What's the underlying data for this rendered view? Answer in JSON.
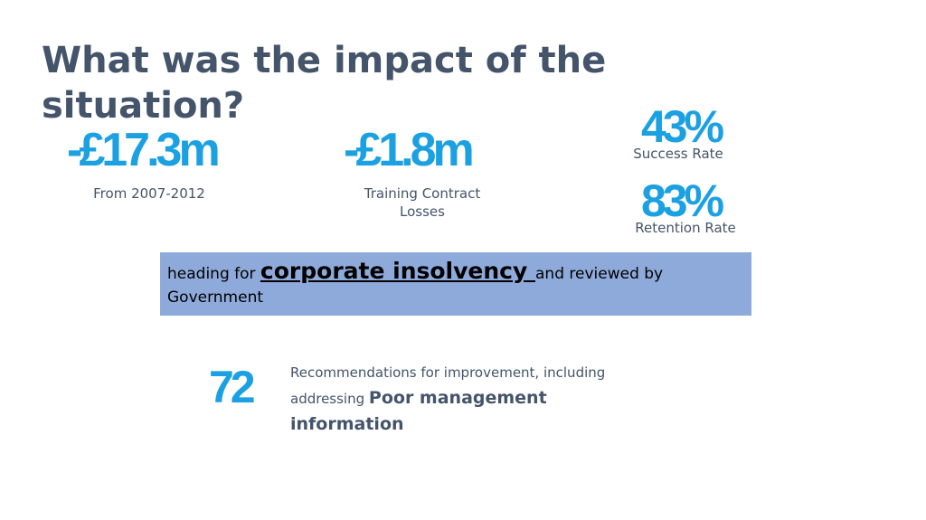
{
  "title": "What was the impact of the situation?",
  "stats": {
    "loss_total": {
      "value": "-£17.3m",
      "caption": "From 2007-2012"
    },
    "loss_training": {
      "value": "-£1.8m",
      "caption": "Training Contract Losses"
    },
    "success": {
      "value": "43%",
      "caption": "Success Rate"
    },
    "retention": {
      "value": "83%",
      "caption": "Retention Rate"
    }
  },
  "insolvency": {
    "prefix": "heading for ",
    "emphasis": "corporate insolvency ",
    "suffix": "and reviewed by Government"
  },
  "recommendations": {
    "count": "72",
    "text": "Recommendations for improvement, including addressing ",
    "emphasis": "Poor management information"
  },
  "colors": {
    "title": "#44546a",
    "accent": "#1ba1e2",
    "box": "#8eaadb"
  }
}
